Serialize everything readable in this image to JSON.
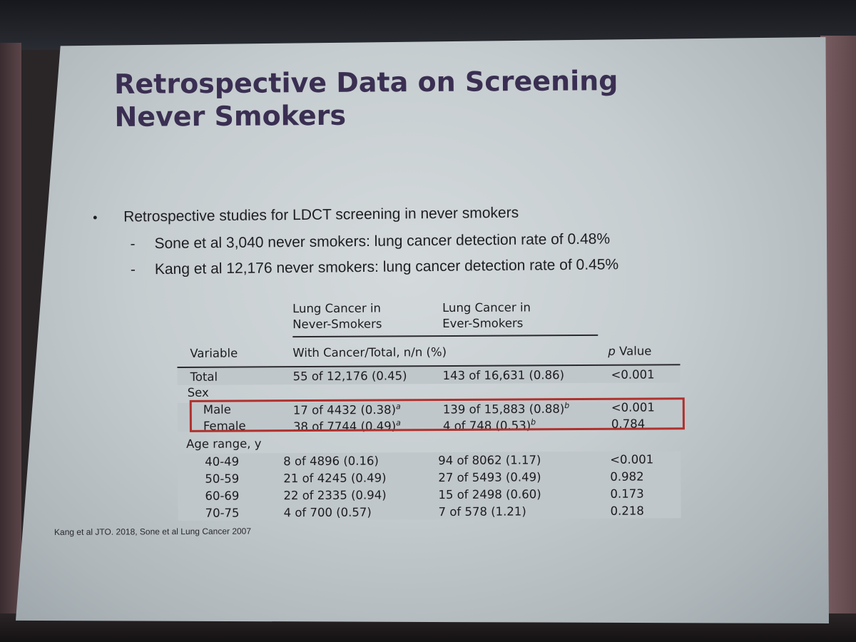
{
  "slide": {
    "title_lines": [
      "Retrospective Data on Screening",
      "Never Smokers"
    ],
    "bullet": "Retrospective studies for LDCT screening in never smokers",
    "sub_bullets": [
      "Sone et al 3,040 never smokers: lung cancer detection rate of 0.48%",
      "Kang et al 12,176 never smokers: lung cancer detection rate of 0.45%"
    ],
    "footer": "Kang et al JTO. 2018, Sone et al Lung Cancer 2007"
  },
  "table": {
    "group_never": [
      "Lung Cancer in",
      "Never-Smokers"
    ],
    "group_ever": [
      "Lung Cancer in",
      "Ever-Smokers"
    ],
    "col_variable": "Variable",
    "col_counts": "With Cancer/Total, n/n (%)",
    "col_p_italic": "p",
    "col_p_rest": " Value",
    "total": {
      "label": "Total",
      "never": "55 of 12,176 (0.45)",
      "ever": "143 of 16,631 (0.86)",
      "p": "<0.001"
    },
    "sex_label": "Sex",
    "male": {
      "label": "Male",
      "never": "17 of 4432 (0.38)",
      "never_sup": "a",
      "ever": "139 of 15,883 (0.88)",
      "ever_sup": "b",
      "p": "<0.001"
    },
    "female": {
      "label": "Female",
      "never": "38 of 7744 (0.49)",
      "never_sup": "a",
      "ever": "4 of 748 (0.53)",
      "ever_sup": "b",
      "p": "0.784"
    },
    "age_label": "Age range, y",
    "age_rows": [
      {
        "label": "40-49",
        "never": "8 of 4896 (0.16)",
        "ever": "94 of 8062 (1.17)",
        "p": "<0.001"
      },
      {
        "label": "50-59",
        "never": "21 of 4245 (0.49)",
        "ever": "27 of 5493 (0.49)",
        "p": "0.982"
      },
      {
        "label": "60-69",
        "never": "22 of 2335 (0.94)",
        "ever": "15 of 2498 (0.60)",
        "p": "0.173"
      },
      {
        "label": "70-75",
        "never": "4 of 700 (0.57)",
        "ever": "7 of 578 (1.21)",
        "p": "0.218"
      }
    ],
    "highlight_color": "#b0302c"
  }
}
